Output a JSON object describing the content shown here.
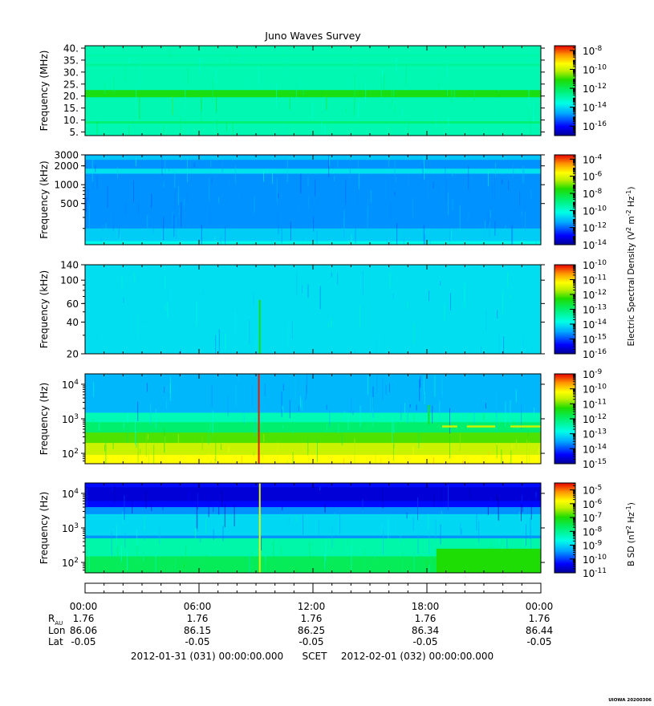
{
  "chart_data": {
    "title": "Juno Waves Survey",
    "type": "heatmap",
    "panels": [
      {
        "id": "p1",
        "ylabel": "Frequency (MHz)",
        "yscale": "linear",
        "ylim": [
          3.5,
          41
        ],
        "yticks": [
          {
            "v": 40,
            "label": "40."
          },
          {
            "v": 35,
            "label": "35."
          },
          {
            "v": 30,
            "label": "30."
          },
          {
            "v": 25,
            "label": "25."
          },
          {
            "v": 20,
            "label": "20."
          },
          {
            "v": 15,
            "label": "15."
          },
          {
            "v": 10,
            "label": "10."
          },
          {
            "v": 5,
            "label": "5."
          }
        ],
        "colorbar": {
          "scale": "log",
          "min_exp": -17,
          "max_exp": -7.5,
          "tick_exps": [
            -8,
            -10,
            -12,
            -14,
            -16
          ]
        },
        "bands": [
          {
            "f0": 3.5,
            "f1": 41,
            "level": -13.0
          },
          {
            "f0": 19.5,
            "f1": 22.5,
            "level": -11.3
          },
          {
            "f0": 8.5,
            "f1": 9.5,
            "level": -12.3
          },
          {
            "f0": 32.5,
            "f1": 33.5,
            "level": -12.7
          },
          {
            "f0": 36.5,
            "f1": 37.2,
            "level": -12.8
          }
        ],
        "texture": 0.35,
        "spikes": []
      },
      {
        "id": "p2",
        "ylabel": "Frequency (kHz)",
        "yscale": "log",
        "ylim": [
          110,
          3000
        ],
        "yticks": [
          {
            "v": 3000,
            "label": "3000"
          },
          {
            "v": 2000,
            "label": "2000"
          },
          {
            "v": 1000,
            "label": "1000"
          },
          {
            "v": 500,
            "label": "500"
          }
        ],
        "colorbar": {
          "scale": "log",
          "min_exp": -14,
          "max_exp": -3.5,
          "tick_exps": [
            -4,
            -6,
            -8,
            -10,
            -12,
            -14
          ]
        },
        "bands": [
          {
            "f0": 110,
            "f1": 3000,
            "level": -11.6
          },
          {
            "f0": 110,
            "f1": 200,
            "level": -10.9
          },
          {
            "f0": 110,
            "f1": 125,
            "level": -10.3
          },
          {
            "f0": 1500,
            "f1": 1800,
            "level": -10.6
          },
          {
            "f0": 2500,
            "f1": 2900,
            "level": -11.0
          }
        ],
        "texture": 0.6,
        "spikes": []
      },
      {
        "id": "p3",
        "ylabel": "Frequency (kHz)",
        "yscale": "log",
        "ylim": [
          20,
          140
        ],
        "yticks": [
          {
            "v": 140,
            "label": "140"
          },
          {
            "v": 100,
            "label": "100"
          },
          {
            "v": 60,
            "label": "60"
          },
          {
            "v": 40,
            "label": "40"
          },
          {
            "v": 20,
            "label": "20"
          }
        ],
        "colorbar": {
          "scale": "log",
          "min_exp": -16,
          "max_exp": -10,
          "tick_exps": [
            -10,
            -11,
            -12,
            -13,
            -14,
            -15,
            -16
          ]
        },
        "bands": [
          {
            "f0": 20,
            "f1": 140,
            "level": -14.1
          }
        ],
        "texture": 0.25,
        "spikes": [
          {
            "t": 9.2,
            "f0": 20,
            "f1": 65,
            "level": -12.3
          }
        ]
      },
      {
        "id": "p4",
        "ylabel": "Frequency (Hz)",
        "yscale": "log",
        "ylim": [
          50,
          20000
        ],
        "yticks": [
          {
            "v": 10000,
            "label": "10",
            "exp": "4"
          },
          {
            "v": 1000,
            "label": "10",
            "exp": "3"
          },
          {
            "v": 100,
            "label": "10",
            "exp": "2"
          }
        ],
        "colorbar": {
          "scale": "log",
          "min_exp": -15,
          "max_exp": -9,
          "tick_exps": [
            -9,
            -10,
            -11,
            -12,
            -13,
            -14,
            -15
          ]
        },
        "bands": [
          {
            "f0": 50,
            "f1": 20000,
            "level": -13.4
          },
          {
            "f0": 50,
            "f1": 1500,
            "level": -12.5
          },
          {
            "f0": 50,
            "f1": 800,
            "level": -12.0
          },
          {
            "f0": 50,
            "f1": 400,
            "level": -11.1
          },
          {
            "f0": 50,
            "f1": 200,
            "level": -10.6
          },
          {
            "f0": 50,
            "f1": 90,
            "level": -10.2
          }
        ],
        "texture": 0.6,
        "spikes": [
          {
            "t": 9.15,
            "f0": 50,
            "f1": 20000,
            "level": -9.1
          },
          {
            "t": 18.1,
            "f0": 700,
            "f1": 2500,
            "level": -11.5
          }
        ],
        "segments": [
          {
            "t0": 18.8,
            "t1": 19.6,
            "f0": 560,
            "f1": 640,
            "level": -10.6
          },
          {
            "t0": 20.1,
            "t1": 21.6,
            "f0": 560,
            "f1": 640,
            "level": -10.6
          },
          {
            "t0": 22.4,
            "t1": 24,
            "f0": 560,
            "f1": 640,
            "level": -10.6
          }
        ]
      },
      {
        "id": "p5",
        "ylabel": "Frequency (Hz)",
        "yscale": "log",
        "ylim": [
          50,
          20000
        ],
        "yticks": [
          {
            "v": 10000,
            "label": "10",
            "exp": "4"
          },
          {
            "v": 1000,
            "label": "10",
            "exp": "3"
          },
          {
            "v": 100,
            "label": "10",
            "exp": "2"
          }
        ],
        "colorbar": {
          "scale": "log",
          "min_exp": -11,
          "max_exp": -4.5,
          "tick_exps": [
            -5,
            -6,
            -7,
            -8,
            -9,
            -10,
            -11
          ]
        },
        "bands": [
          {
            "f0": 50,
            "f1": 20000,
            "level": -9.5
          },
          {
            "f0": 4000,
            "f1": 20000,
            "level": -10.3
          },
          {
            "f0": 6000,
            "f1": 15000,
            "level": -10.6
          },
          {
            "f0": 600,
            "f1": 2500,
            "level": -9.0
          },
          {
            "f0": 50,
            "f1": 500,
            "level": -8.2
          },
          {
            "f0": 50,
            "f1": 150,
            "level": -7.6
          }
        ],
        "texture": 0.6,
        "spikes": [
          {
            "t": 9.2,
            "f0": 50,
            "f1": 20000,
            "level": -6.0
          }
        ],
        "segments": [
          {
            "t0": 18.5,
            "t1": 24,
            "f0": 50,
            "f1": 250,
            "level": -7.0
          }
        ]
      }
    ],
    "side_labels": [
      {
        "text": "Electric Spectral Density (V",
        "sup1": "2",
        "mid": " m",
        "sup2": "-2",
        "mid2": " Hz",
        "sup3": "-1",
        "end": ")"
      },
      {
        "text": "B SD (nT",
        "sup1": "2",
        "mid": " Hz",
        "sup2": "-1",
        "end": ")"
      }
    ],
    "x_axis": {
      "ticks": [
        {
          "h": 0,
          "label": "00:00"
        },
        {
          "h": 6,
          "label": "06:00"
        },
        {
          "h": 12,
          "label": "12:00"
        },
        {
          "h": 18,
          "label": "18:00"
        },
        {
          "h": 24,
          "label": "00:00"
        }
      ],
      "rows": [
        {
          "label": "R",
          "sub": "AU",
          "values": [
            "1.76",
            "1.76",
            "1.76",
            "1.76",
            "1.76"
          ]
        },
        {
          "label": "Lon",
          "values": [
            "86.06",
            "86.15",
            "86.25",
            "86.34",
            "86.44"
          ]
        },
        {
          "label": "Lat",
          "values": [
            "-0.05",
            "-0.05",
            "-0.05",
            "-0.05",
            "-0.05"
          ]
        }
      ],
      "range_start": "2012-01-31 (031) 00:00:00.000",
      "range_mid": "SCET",
      "range_end": "2012-02-01 (032) 00:00:00.000"
    },
    "credit": "UIOWA 20200306"
  }
}
